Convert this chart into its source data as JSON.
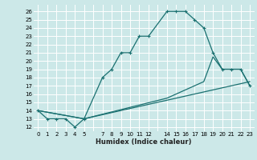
{
  "xlabel": "Humidex (Indice chaleur)",
  "bg_color": "#cce8e8",
  "line_color": "#1a7070",
  "grid_color": "#ffffff",
  "xlim": [
    -0.5,
    23.5
  ],
  "ylim": [
    11.5,
    26.8
  ],
  "yticks": [
    12,
    13,
    14,
    15,
    16,
    17,
    18,
    19,
    20,
    21,
    22,
    23,
    24,
    25,
    26
  ],
  "xtick_show": [
    0,
    1,
    2,
    3,
    4,
    5,
    7,
    8,
    9,
    10,
    11,
    12,
    14,
    15,
    16,
    17,
    18,
    19,
    20,
    21,
    22,
    23
  ],
  "curve1_x": [
    0,
    1,
    2,
    3,
    4,
    5,
    7,
    8,
    9,
    10,
    11,
    12,
    14,
    15,
    16,
    17,
    18,
    19,
    20,
    21,
    22,
    23
  ],
  "curve1_y": [
    14,
    13,
    13,
    13,
    12,
    13,
    18,
    19,
    21,
    21,
    23,
    23,
    26,
    26,
    26,
    25,
    24,
    21,
    19,
    19,
    19,
    17
  ],
  "curve2_x": [
    0,
    5,
    23
  ],
  "curve2_y": [
    14,
    13,
    17.5
  ],
  "curve3_x": [
    0,
    5,
    14,
    15,
    16,
    17,
    18,
    19,
    20,
    21,
    22,
    23
  ],
  "curve3_y": [
    14,
    13,
    15.5,
    16,
    16.5,
    17,
    17.5,
    20.5,
    19,
    19,
    19,
    17
  ]
}
